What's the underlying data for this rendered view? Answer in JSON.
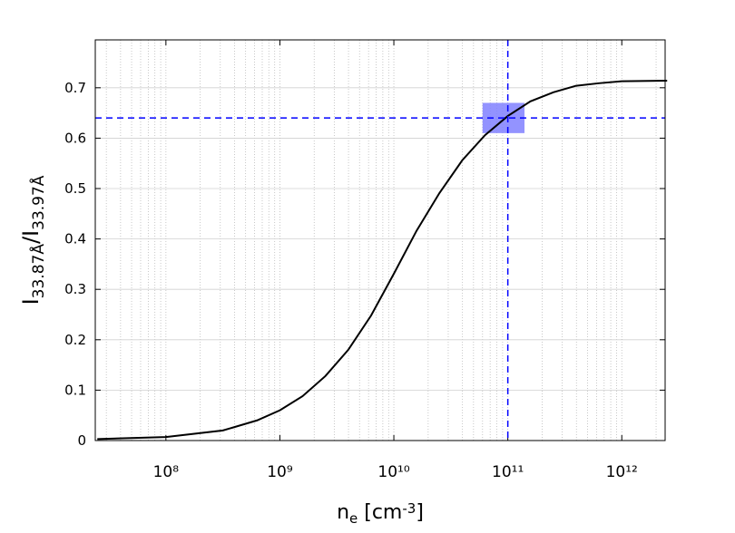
{
  "chart_data": {
    "type": "line",
    "xlabel": [
      "n",
      "e",
      " [cm",
      "-3",
      "]"
    ],
    "ylabel": [
      "I",
      "33.87Å",
      "/I",
      "33.97Å"
    ],
    "x": [
      25000000.0,
      100000000.0,
      316000000.0,
      631000000.0,
      1000000000.0,
      1580000000.0,
      2510000000.0,
      3980000000.0,
      6310000000.0,
      10000000000.0,
      15800000000.0,
      25100000000.0,
      39800000000.0,
      63100000000.0,
      100000000000.0,
      158000000000.0,
      251000000000.0,
      398000000000.0,
      631000000000.0,
      1000000000000.0,
      2500000000000.0
    ],
    "series": [
      {
        "color": "#000000",
        "values": [
          0.003,
          0.007,
          0.02,
          0.04,
          0.06,
          0.088,
          0.128,
          0.18,
          0.248,
          0.331,
          0.416,
          0.491,
          0.556,
          0.606,
          0.644,
          0.673,
          0.691,
          0.704,
          0.709,
          0.713,
          0.714
        ]
      }
    ],
    "xscale": "log",
    "xlim": [
      24000000.0,
      2400000000000.0
    ],
    "xticks": [
      {
        "value": 100000000.0,
        "label": "10⁸"
      },
      {
        "value": 1000000000.0,
        "label": "10⁹"
      },
      {
        "value": 10000000000.0,
        "label": "10¹⁰"
      },
      {
        "value": 100000000000.0,
        "label": "10¹¹"
      },
      {
        "value": 1000000000000.0,
        "label": "10¹²"
      }
    ],
    "ylim": [
      0,
      0.795
    ],
    "yticks": [
      0,
      0.1,
      0.2,
      0.3,
      0.4,
      0.5,
      0.6,
      0.7
    ],
    "grid": true,
    "reference_lines": {
      "x": 100000000000.0,
      "y": 0.64,
      "color": "#0000ff"
    },
    "highlight": {
      "x": [
        60000000000.0,
        140000000000.0
      ],
      "y": [
        0.61,
        0.67
      ],
      "color": "#8080ff"
    }
  }
}
